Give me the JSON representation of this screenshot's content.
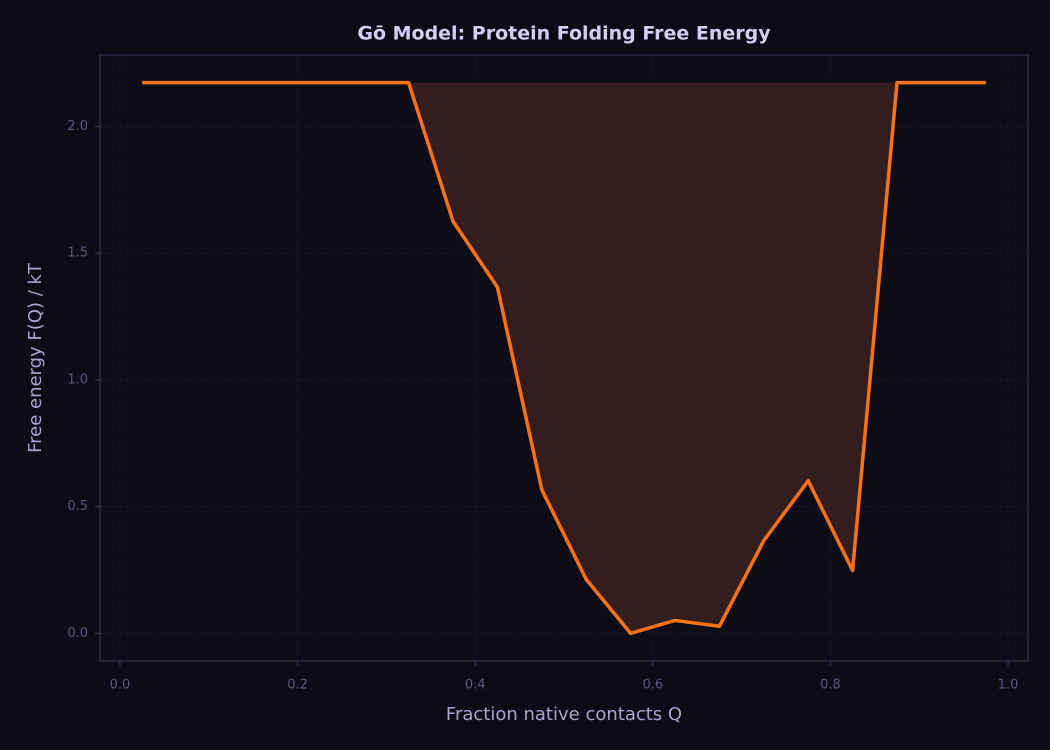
{
  "chart_data": {
    "type": "line",
    "title": "Gō Model: Protein Folding Free Energy",
    "x_label": "Fraction native contacts Q",
    "y_label": "Free energy F(Q) / kT",
    "x": [
      0.025,
      0.075,
      0.125,
      0.175,
      0.225,
      0.275,
      0.325,
      0.375,
      0.425,
      0.475,
      0.525,
      0.575,
      0.625,
      0.675,
      0.725,
      0.775,
      0.825,
      0.875,
      0.925,
      0.975
    ],
    "series": [
      {
        "name": "F(Q)",
        "color": "#f97316",
        "values": [
          2.173,
          2.173,
          2.173,
          2.173,
          2.173,
          2.173,
          2.173,
          1.626,
          1.366,
          0.567,
          0.213,
          0,
          0.051,
          0.028,
          0.366,
          0.602,
          0.248,
          2.173,
          2.173,
          2.173
        ]
      }
    ],
    "fill_color": "#321e1e",
    "xlim": [
      -0.0225,
      1.0225
    ],
    "ylim": [
      -0.109,
      2.282
    ],
    "xticks": [
      {
        "value": 0,
        "label": "0.0"
      },
      0.2,
      0.4,
      0.6,
      0.8,
      {
        "value": 1,
        "label": "1.0"
      }
    ],
    "yticks": [
      {
        "value": 0,
        "label": "0.0"
      },
      0.5,
      {
        "value": 1,
        "label": "1.0"
      },
      1.5,
      {
        "value": 2,
        "label": "2.0"
      }
    ],
    "grid": true
  }
}
